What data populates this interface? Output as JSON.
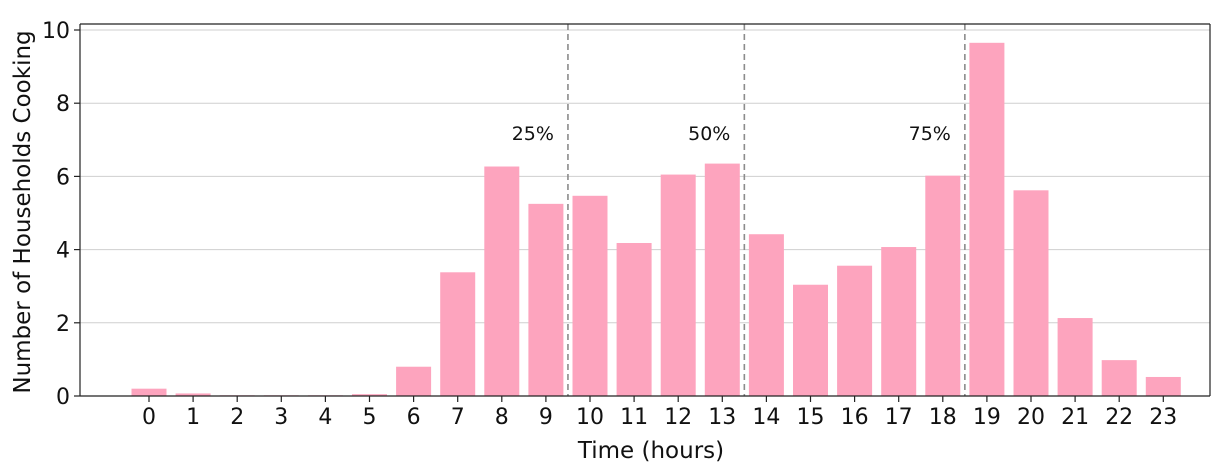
{
  "chart_data": {
    "type": "bar",
    "xlabel": "Time (hours)",
    "ylabel": "Number of Households Cooking",
    "ylim": [
      0,
      10
    ],
    "yticks": [
      0,
      2,
      4,
      6,
      8,
      10
    ],
    "grid": "horizontal",
    "bar_color": "#fda4be",
    "categories": [
      "0",
      "1",
      "2",
      "3",
      "4",
      "5",
      "6",
      "7",
      "8",
      "9",
      "10",
      "11",
      "12",
      "13",
      "14",
      "15",
      "16",
      "17",
      "18",
      "19",
      "20",
      "21",
      "22",
      "23"
    ],
    "values": [
      0.2,
      0.07,
      0.02,
      0.02,
      0.02,
      0.05,
      0.8,
      3.38,
      6.27,
      5.25,
      5.47,
      4.18,
      6.05,
      6.35,
      4.42,
      3.04,
      3.56,
      4.07,
      6.02,
      9.65,
      5.62,
      2.13,
      0.98,
      0.52
    ],
    "vlines": [
      {
        "x": 9.5,
        "label": "25%"
      },
      {
        "x": 13.5,
        "label": "50%"
      },
      {
        "x": 18.5,
        "label": "75%"
      }
    ]
  }
}
